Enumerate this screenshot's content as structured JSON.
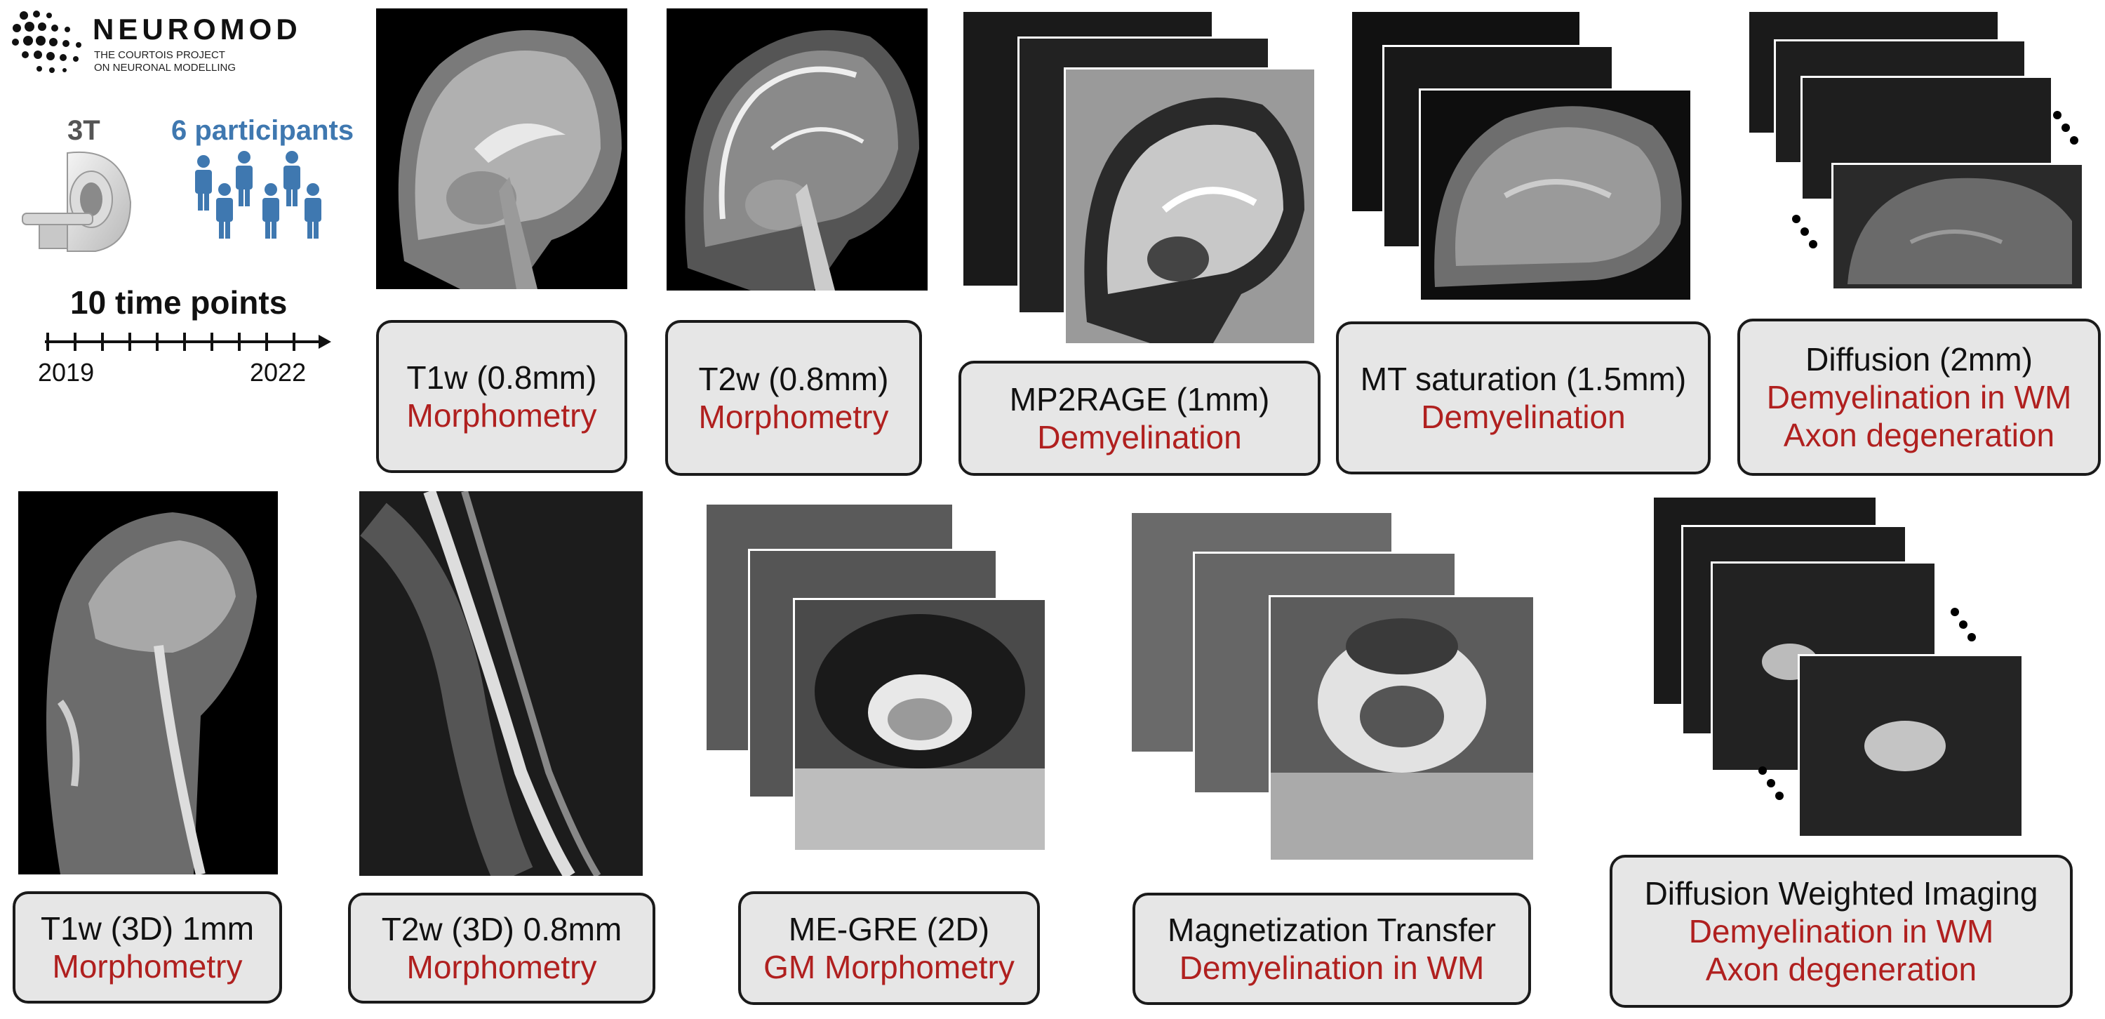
{
  "logo": {
    "name": "NEUROMOD",
    "sub1": "THE COURTOIS PROJECT",
    "sub2": "ON NEURONAL MODELLING"
  },
  "scanner": {
    "label": "3T"
  },
  "participants": {
    "label": "6 participants"
  },
  "timeline": {
    "title": "10 time points",
    "start": "2019",
    "end": "2022"
  },
  "colors": {
    "accent_text": "#b0201f",
    "participants_blue": "#3f78b0",
    "card_bg": "#e6e6e6"
  },
  "brain": [
    {
      "title": "T1w (0.8mm)",
      "subs": [
        "Morphometry"
      ]
    },
    {
      "title": "T2w (0.8mm)",
      "subs": [
        "Morphometry"
      ]
    },
    {
      "title": "MP2RAGE (1mm)",
      "subs": [
        "Demyelination"
      ]
    },
    {
      "title": "MT saturation (1.5mm)",
      "subs": [
        "Demyelination"
      ]
    },
    {
      "title": "Diffusion (2mm)",
      "subs": [
        "Demyelination in WM",
        "Axon degeneration"
      ]
    }
  ],
  "spine": [
    {
      "title": "T1w (3D) 1mm",
      "subs": [
        "Morphometry"
      ]
    },
    {
      "title": "T2w (3D) 0.8mm",
      "subs": [
        "Morphometry"
      ]
    },
    {
      "title": "ME-GRE (2D)",
      "subs": [
        "GM Morphometry"
      ]
    },
    {
      "title": "Magnetization Transfer",
      "subs": [
        "Demyelination in WM"
      ]
    },
    {
      "title": "Diffusion Weighted Imaging",
      "subs": [
        "Demyelination in WM",
        "Axon degeneration"
      ]
    }
  ]
}
